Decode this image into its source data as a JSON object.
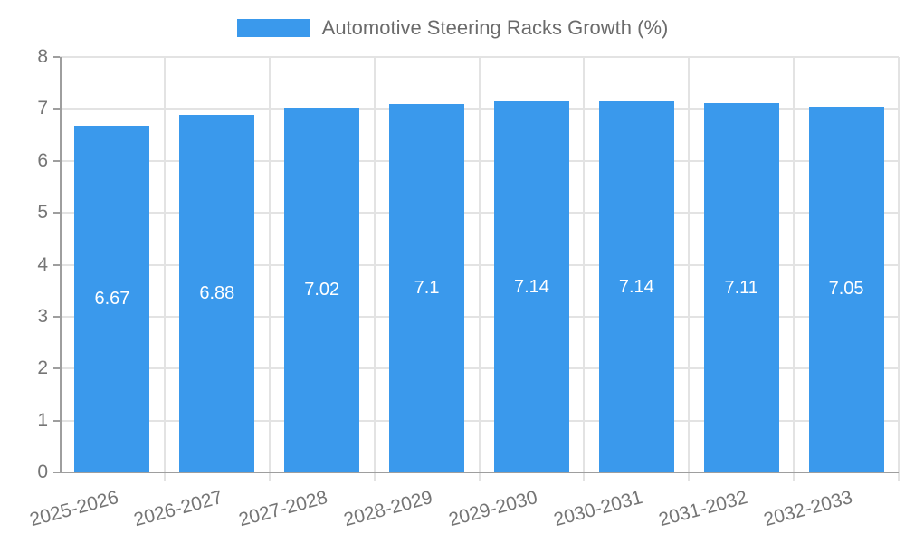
{
  "chart_data": {
    "type": "bar",
    "title": "Automotive Steering Racks Growth (%)",
    "categories": [
      "2025-2026",
      "2026-2027",
      "2027-2028",
      "2028-2029",
      "2029-2030",
      "2030-2031",
      "2031-2032",
      "2032-2033"
    ],
    "values": [
      6.67,
      6.88,
      7.02,
      7.1,
      7.14,
      7.14,
      7.11,
      7.05
    ],
    "value_labels": [
      "6.67",
      "6.88",
      "7.02",
      "7.1",
      "7.14",
      "7.14",
      "7.11",
      "7.05"
    ],
    "xlabel": "",
    "ylabel": "",
    "ylim": [
      0,
      8
    ],
    "yticks": [
      0,
      1,
      2,
      3,
      4,
      5,
      6,
      7,
      8
    ],
    "grid": true,
    "legend_position": "top-center",
    "bar_color": "#3A99EC",
    "colors": {
      "bar": "#3A99EC",
      "axis": "#9e9e9e",
      "gridline": "#e3e3e3",
      "tick_label": "#757575",
      "legend_text": "#6b6b6b",
      "value_label": "#ffffff",
      "background": "#ffffff"
    }
  }
}
